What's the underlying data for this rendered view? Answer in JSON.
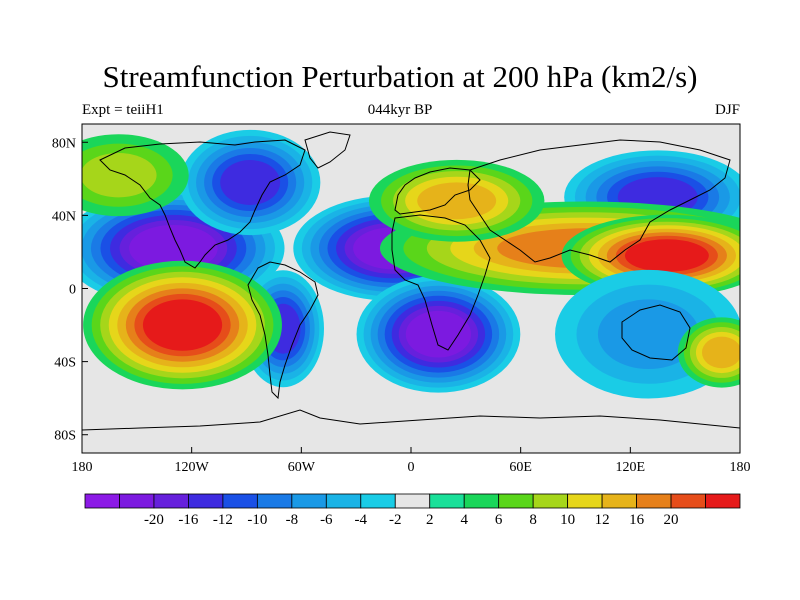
{
  "title": "Streamfunction Perturbation at 200 hPa (km2/s)",
  "subtitle_left": "Expt = teiiH1",
  "subtitle_center": "044kyr BP",
  "subtitle_right": "DJF",
  "map": {
    "lon_range": [
      -180,
      180
    ],
    "lat_range": [
      -90,
      90
    ],
    "x_ticks": [
      {
        "value": -180,
        "label": "180"
      },
      {
        "value": -120,
        "label": "120W"
      },
      {
        "value": -60,
        "label": "60W"
      },
      {
        "value": 0,
        "label": "0"
      },
      {
        "value": 60,
        "label": "60E"
      },
      {
        "value": 120,
        "label": "120E"
      },
      {
        "value": 180,
        "label": "180"
      }
    ],
    "y_ticks": [
      {
        "value": 80,
        "label": "80N"
      },
      {
        "value": 40,
        "label": "40N"
      },
      {
        "value": 0,
        "label": "0"
      },
      {
        "value": -40,
        "label": "40S"
      },
      {
        "value": -80,
        "label": "80S"
      }
    ]
  },
  "colorbar": {
    "colors": [
      "#8c1ae6",
      "#7c1ae0",
      "#6620dc",
      "#3e2be0",
      "#1a50e6",
      "#1a7ae6",
      "#1a99e6",
      "#1ab3e6",
      "#1acce6",
      "#e6e6e6",
      "#1ae099",
      "#1ad65a",
      "#5ad61a",
      "#a6d61a",
      "#e6d61a",
      "#e6b31a",
      "#e6801a",
      "#e64d1a",
      "#e61a1a"
    ],
    "labels": [
      "-20",
      "-16",
      "-12",
      "-10",
      "-8",
      "-6",
      "-4",
      "-2",
      "2",
      "4",
      "6",
      "8",
      "10",
      "12",
      "16",
      "20"
    ]
  },
  "field_blobs": [
    {
      "lon": -130,
      "lat": 22,
      "rx": 38,
      "ry": 20,
      "level": -20
    },
    {
      "lon": -88,
      "lat": 58,
      "rx": 24,
      "ry": 18,
      "level": -12
    },
    {
      "lon": -10,
      "lat": 22,
      "rx": 34,
      "ry": 18,
      "level": -20
    },
    {
      "lon": 15,
      "lat": -25,
      "rx": 28,
      "ry": 20,
      "level": -20
    },
    {
      "lon": -70,
      "lat": -22,
      "rx": 14,
      "ry": 20,
      "level": -12
    },
    {
      "lon": 135,
      "lat": 50,
      "rx": 32,
      "ry": 16,
      "level": -12
    },
    {
      "lon": -125,
      "lat": -20,
      "rx": 34,
      "ry": 22,
      "level": 20
    },
    {
      "lon": 95,
      "lat": 22,
      "rx": 70,
      "ry": 16,
      "level": 12
    },
    {
      "lon": 140,
      "lat": 18,
      "rx": 36,
      "ry": 14,
      "level": 20
    },
    {
      "lon": 25,
      "lat": 48,
      "rx": 30,
      "ry": 14,
      "level": 10
    },
    {
      "lon": 130,
      "lat": -25,
      "rx": 32,
      "ry": 22,
      "level": -6
    },
    {
      "lon": -160,
      "lat": 62,
      "rx": 24,
      "ry": 14,
      "level": 6
    },
    {
      "lon": 170,
      "lat": -35,
      "rx": 15,
      "ry": 12,
      "level": 10
    }
  ]
}
